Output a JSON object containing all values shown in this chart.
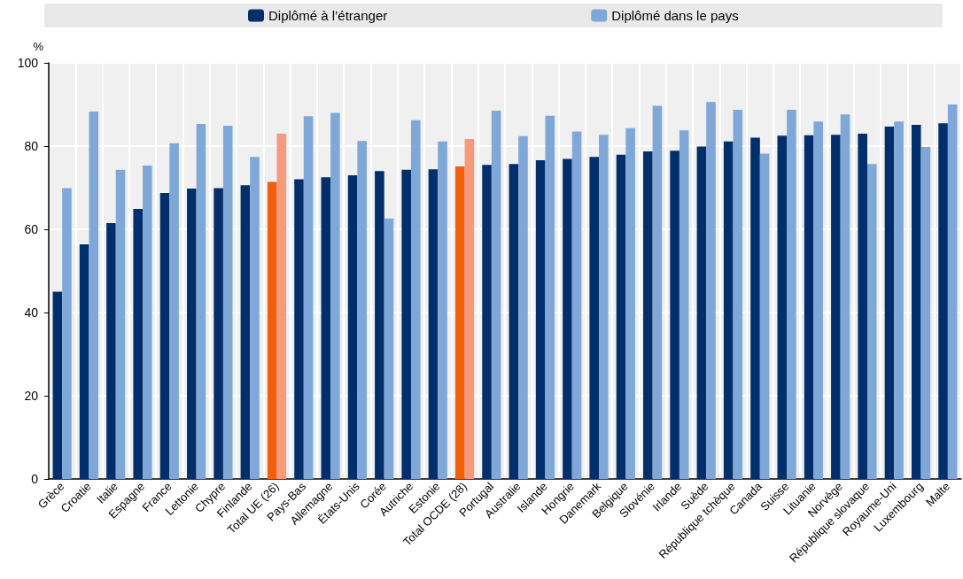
{
  "chart_data": {
    "type": "bar",
    "ylabel": "%",
    "categories": [
      "Grèce",
      "Croatie",
      "Italie",
      "Espagne",
      "France",
      "Lettonie",
      "Chypre",
      "Finlande",
      "Total UE (26)",
      "Pays-Bas",
      "Allemagne",
      "États-Unis",
      "Corée",
      "Autriche",
      "Estonie",
      "Total OCDE (28)",
      "Portugal",
      "Australie",
      "Islande",
      "Hongrie",
      "Danemark",
      "Belgique",
      "Slovénie",
      "Irlande",
      "Suède",
      "République tchèque",
      "Canada",
      "Suisse",
      "Lituanie",
      "Norvège",
      "République slovaque",
      "Royaume-Uni",
      "Luxembourg",
      "Malte"
    ],
    "series": [
      {
        "name": "Diplômé à l’étranger",
        "color": "#002f6c",
        "colors": [
          "#002f6c",
          "#002f6c",
          "#002f6c",
          "#002f6c",
          "#002f6c",
          "#002f6c",
          "#002f6c",
          "#002f6c",
          "#f45d0a",
          "#002f6c",
          "#002f6c",
          "#002f6c",
          "#002f6c",
          "#002f6c",
          "#002f6c",
          "#f45d0a",
          "#002f6c",
          "#002f6c",
          "#002f6c",
          "#002f6c",
          "#002f6c",
          "#002f6c",
          "#002f6c",
          "#002f6c",
          "#002f6c",
          "#002f6c",
          "#002f6c",
          "#002f6c",
          "#002f6c",
          "#002f6c",
          "#002f6c",
          "#002f6c",
          "#002f6c",
          "#002f6c"
        ],
        "values": [
          45.0,
          56.4,
          61.5,
          64.9,
          68.7,
          69.8,
          69.9,
          70.6,
          71.4,
          72.0,
          72.5,
          73.0,
          74.0,
          74.3,
          74.4,
          75.1,
          75.5,
          75.7,
          76.6,
          76.9,
          77.4,
          77.9,
          78.7,
          78.9,
          79.9,
          81.1,
          82.0,
          82.5,
          82.6,
          82.7,
          83.0,
          84.7,
          85.1,
          85.5
        ]
      },
      {
        "name": "Diplômé dans le pays",
        "color": "#7fa8d9",
        "colors": [
          "#7fa8d9",
          "#7fa8d9",
          "#7fa8d9",
          "#7fa8d9",
          "#7fa8d9",
          "#7fa8d9",
          "#7fa8d9",
          "#7fa8d9",
          "#f79a7b",
          "#7fa8d9",
          "#7fa8d9",
          "#7fa8d9",
          "#7fa8d9",
          "#7fa8d9",
          "#7fa8d9",
          "#f79a7b",
          "#7fa8d9",
          "#7fa8d9",
          "#7fa8d9",
          "#7fa8d9",
          "#7fa8d9",
          "#7fa8d9",
          "#7fa8d9",
          "#7fa8d9",
          "#7fa8d9",
          "#7fa8d9",
          "#7fa8d9",
          "#7fa8d9",
          "#7fa8d9",
          "#7fa8d9",
          "#7fa8d9",
          "#7fa8d9",
          "#7fa8d9",
          "#7fa8d9"
        ],
        "values": [
          69.9,
          88.3,
          74.3,
          75.3,
          80.7,
          85.3,
          84.9,
          77.4,
          83.0,
          87.2,
          88.0,
          81.2,
          62.6,
          86.2,
          81.1,
          81.7,
          88.5,
          82.4,
          87.3,
          83.5,
          82.7,
          84.3,
          89.7,
          83.8,
          90.6,
          88.7,
          78.2,
          88.7,
          85.9,
          87.6,
          75.7,
          85.9,
          79.8,
          90.0
        ]
      }
    ],
    "ylim": [
      0,
      100
    ],
    "yticks": [
      0,
      20,
      40,
      60,
      80,
      100
    ],
    "grid": true,
    "legend": "top"
  }
}
